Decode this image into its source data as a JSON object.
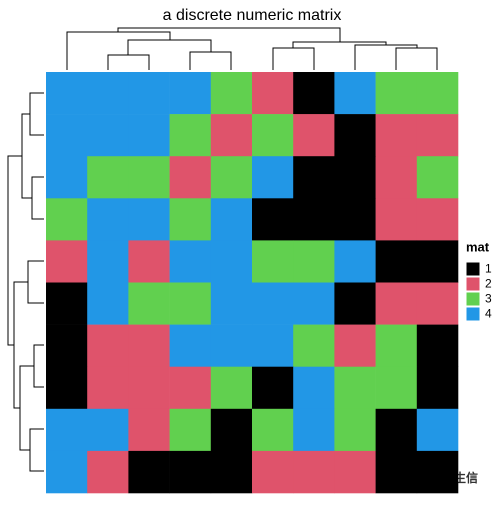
{
  "chart_data": {
    "type": "heatmap",
    "title": "a discrete numeric matrix",
    "matrix": [
      [
        4,
        4,
        4,
        4,
        3,
        2,
        1,
        4,
        3,
        3
      ],
      [
        4,
        4,
        4,
        3,
        2,
        3,
        2,
        1,
        2,
        2
      ],
      [
        4,
        3,
        3,
        2,
        3,
        4,
        1,
        1,
        2,
        3
      ],
      [
        3,
        4,
        4,
        3,
        4,
        1,
        1,
        1,
        2,
        2
      ],
      [
        2,
        4,
        2,
        4,
        4,
        3,
        3,
        4,
        1,
        1
      ],
      [
        1,
        4,
        3,
        3,
        4,
        4,
        4,
        1,
        2,
        2
      ],
      [
        1,
        2,
        2,
        4,
        4,
        4,
        3,
        2,
        3,
        1
      ],
      [
        1,
        2,
        2,
        2,
        3,
        1,
        4,
        3,
        3,
        1
      ],
      [
        4,
        4,
        2,
        3,
        1,
        3,
        4,
        3,
        1,
        4
      ],
      [
        4,
        2,
        1,
        1,
        1,
        2,
        2,
        2,
        1,
        1
      ]
    ],
    "legend": {
      "title": "mat",
      "levels": [
        1,
        2,
        3,
        4
      ],
      "labels": [
        "1",
        "2",
        "3",
        "4"
      ],
      "colors": [
        "#000000",
        "#DF536B",
        "#61D04F",
        "#2297E6"
      ]
    },
    "watermark": "中科生信"
  }
}
